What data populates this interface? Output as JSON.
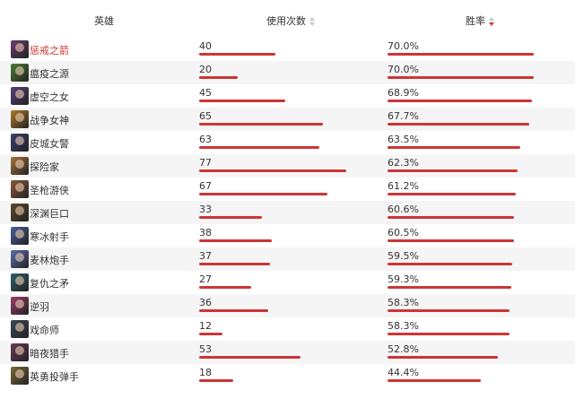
{
  "header": {
    "hero": "英雄",
    "uses": "使用次数",
    "winrate": "胜率"
  },
  "colors": {
    "bar": "#cc3535",
    "highlight_text": "#d0342c",
    "alt_row_bg": "#f5f5f5",
    "sort_active": "#d0342c",
    "sort_inactive": "#c8c8c8"
  },
  "max_uses": 77,
  "rows": [
    {
      "name": "惩戒之箭",
      "uses": "40",
      "winrate": "70.0%",
      "win_pct": 70.0,
      "avatar_color": "#6b3c6e",
      "highlight": true
    },
    {
      "name": "瘟疫之源",
      "uses": "20",
      "winrate": "70.0%",
      "win_pct": 70.0,
      "avatar_color": "#4f7a3a",
      "highlight": false
    },
    {
      "name": "虚空之女",
      "uses": "45",
      "winrate": "68.9%",
      "win_pct": 68.9,
      "avatar_color": "#5a3f7a",
      "highlight": false
    },
    {
      "name": "战争女神",
      "uses": "65",
      "winrate": "67.7%",
      "win_pct": 67.7,
      "avatar_color": "#b07a2c",
      "highlight": false
    },
    {
      "name": "皮城女警",
      "uses": "63",
      "winrate": "63.5%",
      "win_pct": 63.5,
      "avatar_color": "#3b3f6e",
      "highlight": false
    },
    {
      "name": "探险家",
      "uses": "77",
      "winrate": "62.3%",
      "win_pct": 62.3,
      "avatar_color": "#a8743a",
      "highlight": false
    },
    {
      "name": "圣枪游侠",
      "uses": "67",
      "winrate": "61.2%",
      "win_pct": 61.2,
      "avatar_color": "#8a5a3a",
      "highlight": false
    },
    {
      "name": "深渊巨口",
      "uses": "33",
      "winrate": "60.6%",
      "win_pct": 60.6,
      "avatar_color": "#5b4a2a",
      "highlight": false
    },
    {
      "name": "寒冰射手",
      "uses": "38",
      "winrate": "60.5%",
      "win_pct": 60.5,
      "avatar_color": "#4a5fa0",
      "highlight": false
    },
    {
      "name": "麦林炮手",
      "uses": "37",
      "winrate": "59.5%",
      "win_pct": 59.5,
      "avatar_color": "#5a6fb0",
      "highlight": false
    },
    {
      "name": "复仇之矛",
      "uses": "27",
      "winrate": "59.3%",
      "win_pct": 59.3,
      "avatar_color": "#2f5f6a",
      "highlight": false
    },
    {
      "name": "逆羽",
      "uses": "36",
      "winrate": "58.3%",
      "win_pct": 58.3,
      "avatar_color": "#9a3a6a",
      "highlight": false
    },
    {
      "name": "戏命师",
      "uses": "12",
      "winrate": "58.3%",
      "win_pct": 58.3,
      "avatar_color": "#3a4a5a",
      "highlight": false
    },
    {
      "name": "暗夜猎手",
      "uses": "53",
      "winrate": "52.8%",
      "win_pct": 52.8,
      "avatar_color": "#6a3a5a",
      "highlight": false
    },
    {
      "name": "英勇投弹手",
      "uses": "18",
      "winrate": "44.4%",
      "win_pct": 44.4,
      "avatar_color": "#7a6a3a",
      "highlight": false
    }
  ]
}
